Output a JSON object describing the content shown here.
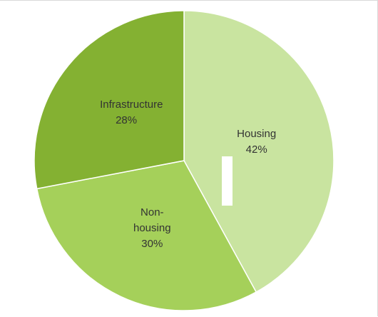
{
  "chart_data": {
    "type": "pie",
    "categories": [
      "Housing",
      "Non-housing",
      "Infrastructure"
    ],
    "values": [
      42,
      30,
      28
    ],
    "value_labels": [
      "42%",
      "30%",
      "28%"
    ],
    "colors": [
      "#c9e4a0",
      "#a5d05a",
      "#84b132"
    ]
  }
}
